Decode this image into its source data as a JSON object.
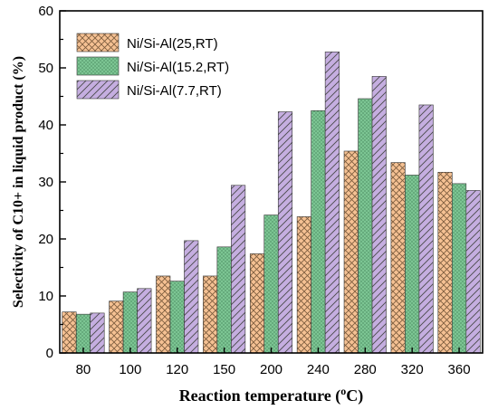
{
  "chart_data": {
    "type": "bar",
    "categories": [
      "80",
      "100",
      "120",
      "150",
      "200",
      "240",
      "280",
      "320",
      "360"
    ],
    "series": [
      {
        "name": "Ni/Si-Al(25,RT)",
        "values": [
          7.2,
          9.1,
          13.5,
          13.5,
          17.4,
          23.9,
          35.4,
          33.4,
          31.7
        ],
        "color": "#f5c193",
        "pattern": "crosshatch"
      },
      {
        "name": "Ni/Si-Al(15.2,RT)",
        "values": [
          6.8,
          10.7,
          12.6,
          18.6,
          24.2,
          42.5,
          44.6,
          31.2,
          29.7
        ],
        "color": "#7cc593",
        "pattern": "dotted"
      },
      {
        "name": "Ni/Si-Al(7.7,RT)",
        "values": [
          7.0,
          11.3,
          19.7,
          29.4,
          42.3,
          52.8,
          48.5,
          43.5,
          28.5
        ],
        "color": "#c5aee0",
        "pattern": "diagonal"
      }
    ],
    "ylim": [
      0,
      60
    ],
    "yticks": [
      0,
      10,
      20,
      30,
      40,
      50,
      60
    ],
    "ylabel": "Selectivity of  C10+ in liquid product (%)",
    "xlabel_main": "Reaction temperature (",
    "xlabel_sup": "o",
    "xlabel_unit": "C)",
    "grid": false,
    "legend_position": "top-left"
  }
}
